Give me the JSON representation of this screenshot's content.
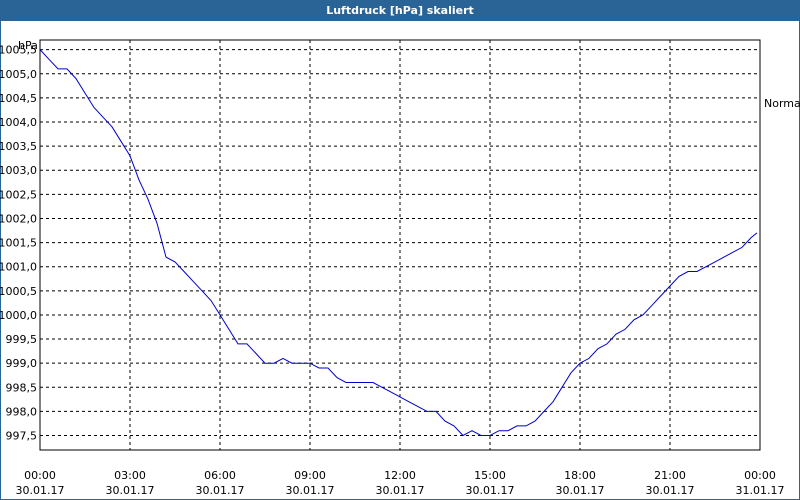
{
  "window": {
    "title": "Luftdruck [hPa] skaliert"
  },
  "chart_data": {
    "type": "line",
    "title": "Luftdruck [hPa] skaliert",
    "ylabel": "hPa",
    "reference_label": "Normal",
    "ylim": [
      997.2,
      1005.7
    ],
    "y_ticks": [
      "1005,5",
      "1005,0",
      "1004,5",
      "1004,0",
      "1003,5",
      "1003,0",
      "1002,5",
      "1002,0",
      "1001,5",
      "1001,0",
      "1000,5",
      "1000,0",
      "999,5",
      "999,0",
      "998,5",
      "998,0",
      "997,5"
    ],
    "y_tick_values": [
      1005.5,
      1005.0,
      1004.5,
      1004.0,
      1003.5,
      1003.0,
      1002.5,
      1002.0,
      1001.5,
      1001.0,
      1000.5,
      1000.0,
      999.5,
      999.0,
      998.5,
      998.0,
      997.5
    ],
    "x_ticks": [
      {
        "time": "00:00",
        "date": "30.01.17",
        "hour": 0
      },
      {
        "time": "03:00",
        "date": "30.01.17",
        "hour": 3
      },
      {
        "time": "06:00",
        "date": "30.01.17",
        "hour": 6
      },
      {
        "time": "09:00",
        "date": "30.01.17",
        "hour": 9
      },
      {
        "time": "12:00",
        "date": "30.01.17",
        "hour": 12
      },
      {
        "time": "15:00",
        "date": "30.01.17",
        "hour": 15
      },
      {
        "time": "18:00",
        "date": "30.01.17",
        "hour": 18
      },
      {
        "time": "21:00",
        "date": "30.01.17",
        "hour": 21
      },
      {
        "time": "00:00",
        "date": "31.01.17",
        "hour": 24
      }
    ],
    "xlim": [
      0,
      24
    ],
    "grid": true,
    "line_color": "#0000cc",
    "series": [
      {
        "x": [
          0,
          0.3,
          0.6,
          0.9,
          1.2,
          1.5,
          1.8,
          2.1,
          2.4,
          2.7,
          3.0,
          3.3,
          3.6,
          3.9,
          4.2,
          4.5,
          4.8,
          5.1,
          5.4,
          5.7,
          6.0,
          6.3,
          6.6,
          6.9,
          7.2,
          7.5,
          7.8,
          8.1,
          8.4,
          8.7,
          9.0,
          9.3,
          9.6,
          9.9,
          10.2,
          10.5,
          10.8,
          11.1,
          11.4,
          11.7,
          12.0,
          12.3,
          12.6,
          12.9,
          13.2,
          13.5,
          13.8,
          14.1,
          14.4,
          14.7,
          15.0,
          15.3,
          15.6,
          15.9,
          16.2,
          16.5,
          16.8,
          17.1,
          17.4,
          17.7,
          18.0,
          18.3,
          18.6,
          18.9,
          19.2,
          19.5,
          19.8,
          20.1,
          20.4,
          20.7,
          21.0,
          21.3,
          21.6,
          21.9,
          22.2,
          22.5,
          22.8,
          23.1,
          23.4,
          23.7,
          23.9
        ],
        "y": [
          1005.5,
          1005.3,
          1005.1,
          1005.1,
          1004.9,
          1004.6,
          1004.3,
          1004.1,
          1003.9,
          1003.6,
          1003.3,
          1002.8,
          1002.4,
          1001.9,
          1001.2,
          1001.1,
          1000.9,
          1000.7,
          1000.5,
          1000.3,
          1000.0,
          999.7,
          999.4,
          999.4,
          999.2,
          999.0,
          999.0,
          999.1,
          999.0,
          999.0,
          999.0,
          998.9,
          998.9,
          998.7,
          998.6,
          998.6,
          998.6,
          998.6,
          998.5,
          998.4,
          998.3,
          998.2,
          998.1,
          998.0,
          998.0,
          997.8,
          997.7,
          997.5,
          997.6,
          997.5,
          997.5,
          997.6,
          997.6,
          997.7,
          997.7,
          997.8,
          998.0,
          998.2,
          998.5,
          998.8,
          999.0,
          999.1,
          999.3,
          999.4,
          999.6,
          999.7,
          999.9,
          1000.0,
          1000.2,
          1000.4,
          1000.6,
          1000.8,
          1000.9,
          1000.9,
          1001.0,
          1001.1,
          1001.2,
          1001.3,
          1001.4,
          1001.6,
          1001.7
        ]
      }
    ]
  }
}
